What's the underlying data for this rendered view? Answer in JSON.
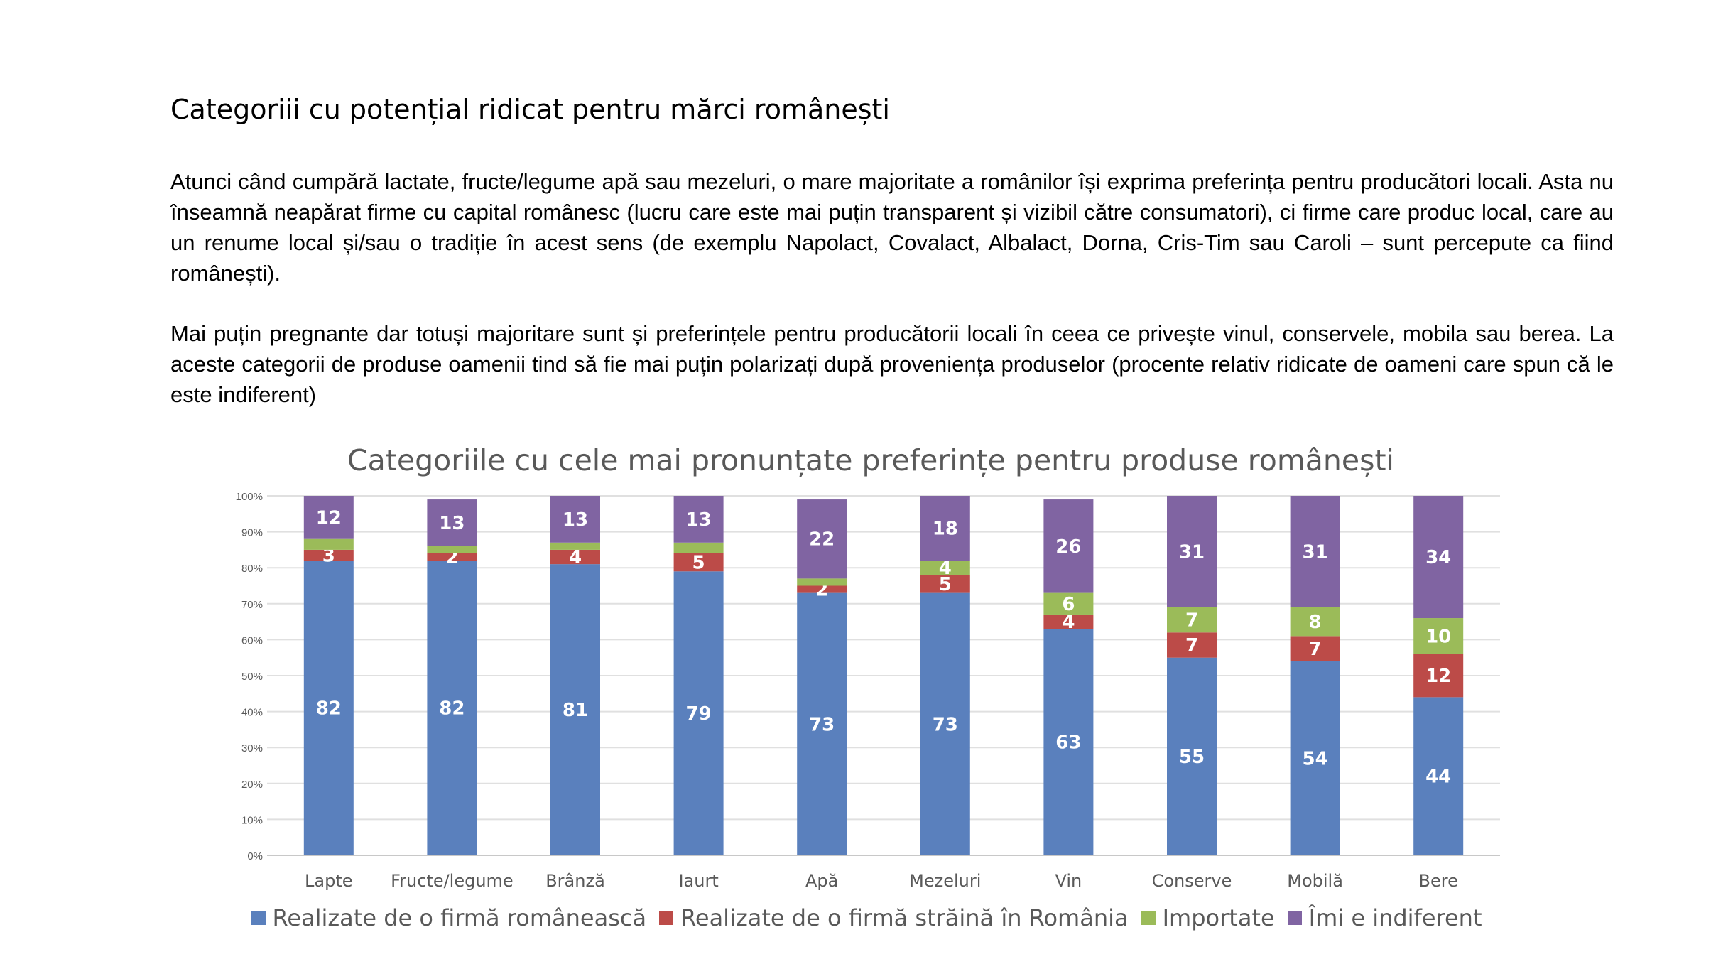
{
  "heading": "Categoriii cu potențial ridicat pentru mărci românești",
  "paragraphs": [
    "Atunci când cumpără lactate, fructe/legume apă sau mezeluri, o mare majoritate a românilor își exprima preferința pentru producători locali. Asta nu înseamnă neapărat firme cu capital românesc (lucru care este mai puțin transparent și vizibil către consumatori), ci firme care produc local, care au un renume local și/sau o tradiție în acest sens (de exemplu Napolact, Covalact, Albalact, Dorna, Cris-Tim sau Caroli –  sunt percepute ca fiind  românești).",
    "Mai puțin pregnante dar totuși majoritare sunt și preferințele pentru producătorii locali în ceea ce privește vinul, conservele, mobila sau berea.  La aceste categorii de produse oamenii tind să fie mai puțin polarizați după proveniența produselor (procente relativ ridicate de oameni care spun că le este indiferent)"
  ],
  "chart_data": {
    "type": "bar",
    "stacked": true,
    "title": "Categoriile cu cele mai pronunțate  preferințe pentru produse românești",
    "categories": [
      "Lapte",
      "Fructe/legume",
      "Brânză",
      "Iaurt",
      "Apă",
      "Mezeluri",
      "Vin",
      "Conserve",
      "Mobilă",
      "Bere"
    ],
    "yticks": [
      "0%",
      "10%",
      "20%",
      "30%",
      "40%",
      "50%",
      "60%",
      "70%",
      "80%",
      "90%",
      "100%"
    ],
    "ylim": [
      0,
      100
    ],
    "grid": true,
    "legend_position": "bottom",
    "series": [
      {
        "name": "Realizate de o firmă românească",
        "color": "#5A80BD",
        "values": [
          82,
          82,
          81,
          79,
          73,
          73,
          63,
          55,
          54,
          44
        ]
      },
      {
        "name": "Realizate de o firmă străină în România",
        "color": "#BC4B48",
        "values": [
          3,
          2,
          4,
          5,
          2,
          5,
          4,
          7,
          7,
          12
        ]
      },
      {
        "name": "Importate",
        "color": "#9BBB59",
        "values": [
          3,
          2,
          2,
          3,
          2,
          4,
          6,
          7,
          8,
          10
        ]
      },
      {
        "name": "Îmi e indiferent",
        "color": "#8064A2",
        "values": [
          12,
          13,
          13,
          13,
          22,
          18,
          26,
          31,
          31,
          34
        ]
      }
    ],
    "data_labels": [
      [
        "82",
        "3",
        "",
        "12"
      ],
      [
        "82",
        "2",
        "",
        "13"
      ],
      [
        "81",
        "4",
        "",
        "13"
      ],
      [
        "79",
        "5",
        "",
        "13"
      ],
      [
        "73",
        "2",
        "",
        "22"
      ],
      [
        "73",
        "5",
        "4",
        "18"
      ],
      [
        "63",
        "4",
        "6",
        "26"
      ],
      [
        "55",
        "7",
        "7",
        "31"
      ],
      [
        "54",
        "7",
        "8",
        "31"
      ],
      [
        "44",
        "12",
        "10",
        "34"
      ]
    ]
  }
}
